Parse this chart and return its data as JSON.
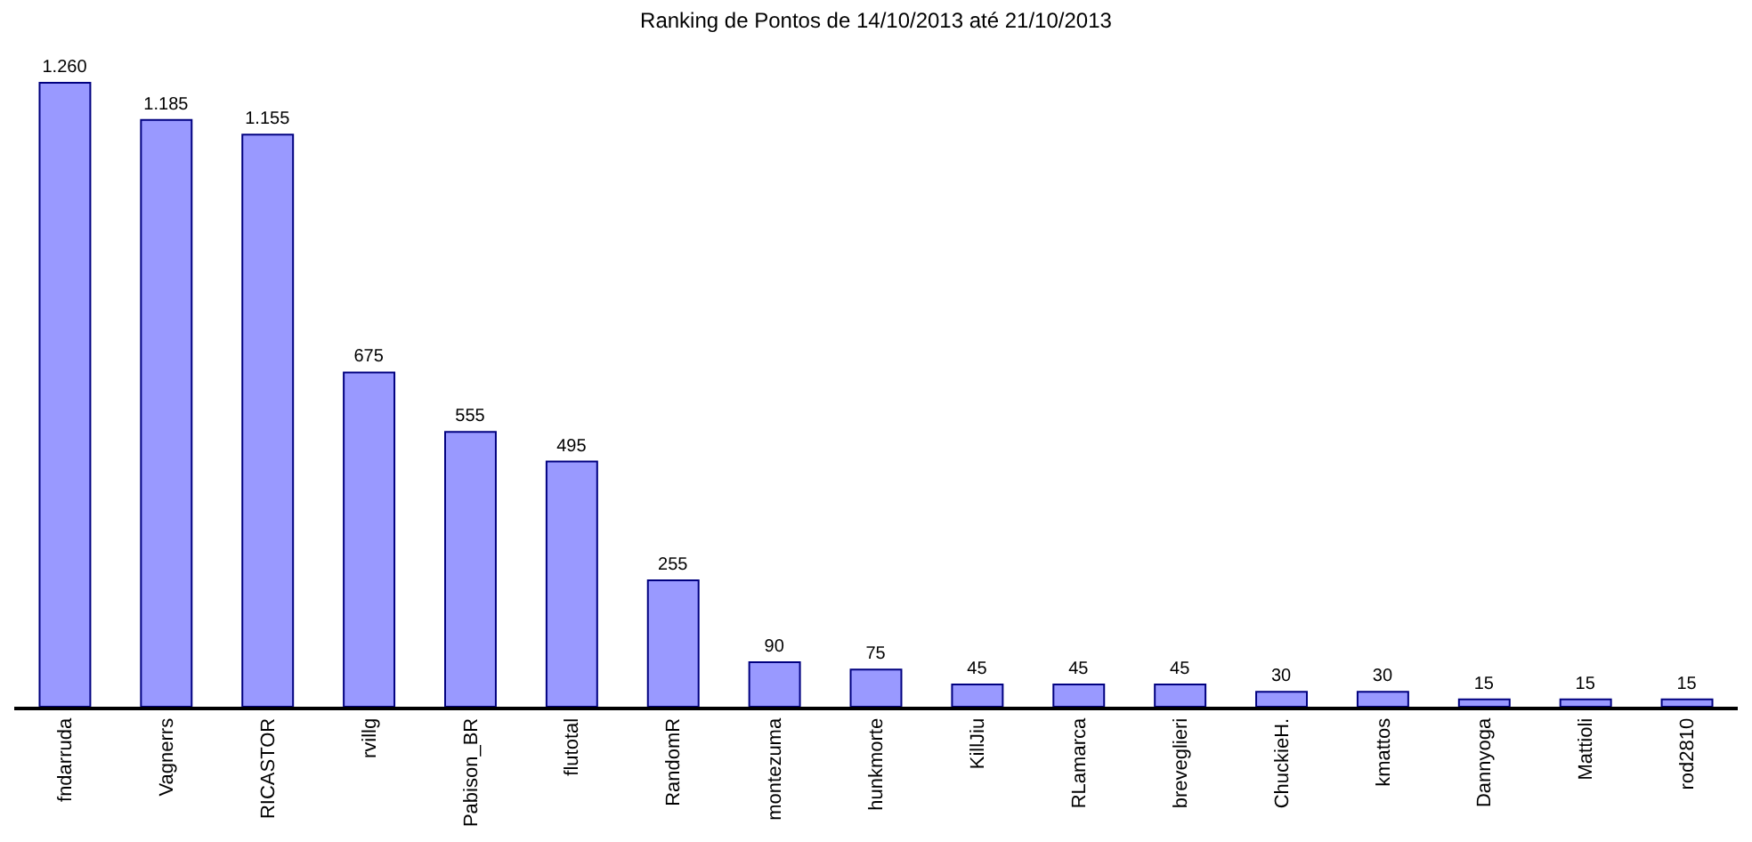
{
  "chart_data": {
    "type": "bar",
    "title": "Ranking de Pontos de 14/10/2013 até 21/10/2013",
    "categories": [
      "fndarruda",
      "Vagnerrs",
      "RICASTOR",
      "rvillg",
      "Pabison_BR",
      "flutotal",
      "RandomR",
      "montezuma",
      "hunkmorte",
      "KillJiu",
      "RLamarca",
      "breveglieri",
      "ChuckieH.",
      "kmattos",
      "Dannyoga",
      "Mattioli",
      "rod2810"
    ],
    "values": [
      1260,
      1185,
      1155,
      675,
      555,
      495,
      255,
      90,
      75,
      45,
      45,
      45,
      30,
      30,
      15,
      15,
      15
    ],
    "value_labels": [
      "1.260",
      "1.185",
      "1.155",
      "675",
      "555",
      "495",
      "255",
      "90",
      "75",
      "45",
      "45",
      "45",
      "30",
      "30",
      "15",
      "15",
      "15"
    ],
    "color": "#9999ff",
    "grid": false,
    "legend": false
  }
}
